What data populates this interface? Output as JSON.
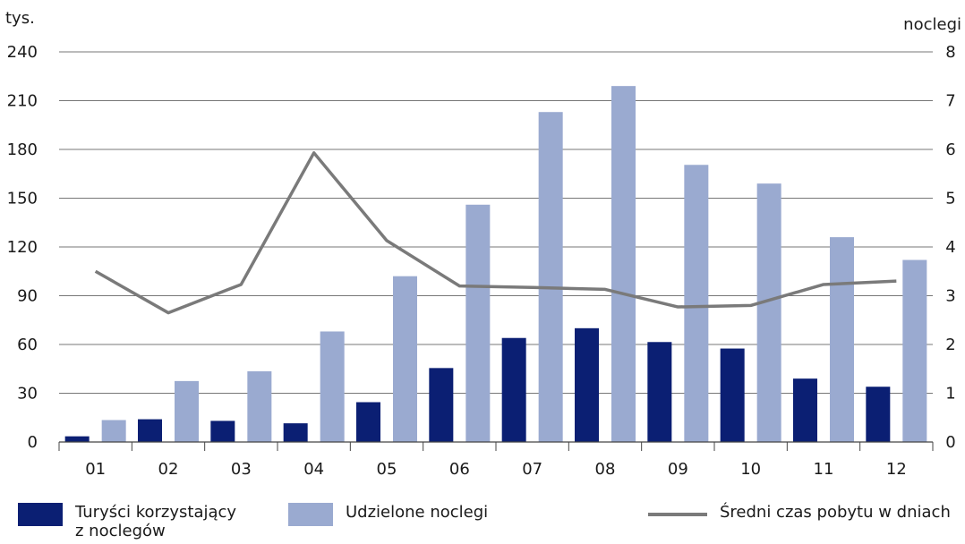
{
  "chart_data": {
    "type": "bar",
    "categories": [
      "01",
      "02",
      "03",
      "04",
      "05",
      "06",
      "07",
      "08",
      "09",
      "10",
      "11",
      "12"
    ],
    "left_axis": {
      "unit_label": "tys.",
      "ylim": [
        0,
        240
      ],
      "ticks": [
        "0",
        "30",
        "60",
        "90",
        "120",
        "150",
        "180",
        "210",
        "240"
      ]
    },
    "right_axis": {
      "unit_label": "noclegi",
      "ylim": [
        0,
        8
      ],
      "ticks": [
        "0",
        "1",
        "2",
        "3",
        "4",
        "5",
        "6",
        "7",
        "8"
      ]
    },
    "grid": true,
    "series": [
      {
        "name": "Turyści korzystający\nz noclegów",
        "type": "bar",
        "axis": "left",
        "color": "#0b1f73",
        "values": [
          3.5,
          14,
          13,
          11.5,
          24.5,
          45.5,
          64,
          70,
          61.5,
          57.5,
          39,
          34
        ]
      },
      {
        "name": "Udzielone noclegi",
        "type": "bar",
        "axis": "left",
        "color": "#9aaad0",
        "values": [
          13.5,
          37.5,
          43.5,
          68,
          102,
          146,
          203,
          219,
          170.5,
          159,
          126,
          112
        ]
      },
      {
        "name": "Średni czas pobytu w dniach",
        "type": "line",
        "axis": "right",
        "color": "#7a7a7a",
        "values": [
          3.5,
          2.65,
          3.23,
          5.93,
          4.13,
          3.2,
          3.17,
          3.13,
          2.77,
          2.8,
          3.23,
          3.3
        ]
      }
    ],
    "legend_position": "bottom"
  }
}
